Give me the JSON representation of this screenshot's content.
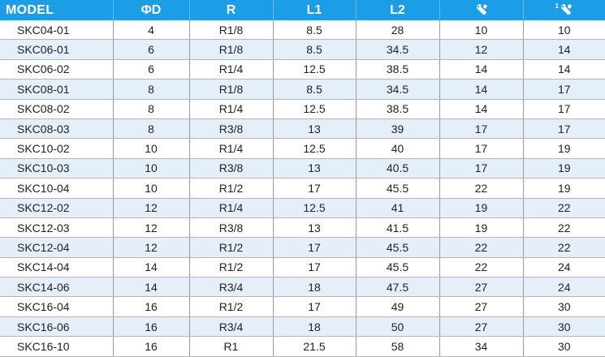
{
  "table": {
    "headers": {
      "model": "MODEL",
      "d": "ΦD",
      "r": "R",
      "l1": "L1",
      "l2": "L2",
      "wrench2_superscript": "1"
    },
    "header_icons": [
      "wrench-icon",
      "wrench-icon"
    ],
    "rows": [
      [
        "SKC04-01",
        "4",
        "R1/8",
        "8.5",
        "28",
        "10",
        "10"
      ],
      [
        "SKC06-01",
        "6",
        "R1/8",
        "8.5",
        "34.5",
        "12",
        "14"
      ],
      [
        "SKC06-02",
        "6",
        "R1/4",
        "12.5",
        "38.5",
        "14",
        "14"
      ],
      [
        "SKC08-01",
        "8",
        "R1/8",
        "8.5",
        "34.5",
        "14",
        "17"
      ],
      [
        "SKC08-02",
        "8",
        "R1/4",
        "12.5",
        "38.5",
        "14",
        "17"
      ],
      [
        "SKC08-03",
        "8",
        "R3/8",
        "13",
        "39",
        "17",
        "17"
      ],
      [
        "SKC10-02",
        "10",
        "R1/4",
        "12.5",
        "40",
        "17",
        "19"
      ],
      [
        "SKC10-03",
        "10",
        "R3/8",
        "13",
        "40.5",
        "17",
        "19"
      ],
      [
        "SKC10-04",
        "10",
        "R1/2",
        "17",
        "45.5",
        "22",
        "19"
      ],
      [
        "SKC12-02",
        "12",
        "R1/4",
        "12.5",
        "41",
        "19",
        "22"
      ],
      [
        "SKC12-03",
        "12",
        "R3/8",
        "13",
        "41.5",
        "19",
        "22"
      ],
      [
        "SKC12-04",
        "12",
        "R1/2",
        "17",
        "45.5",
        "22",
        "22"
      ],
      [
        "SKC14-04",
        "14",
        "R1/2",
        "17",
        "45.5",
        "22",
        "24"
      ],
      [
        "SKC14-06",
        "14",
        "R3/4",
        "18",
        "47.5",
        "27",
        "24"
      ],
      [
        "SKC16-04",
        "16",
        "R1/2",
        "17",
        "49",
        "27",
        "30"
      ],
      [
        "SKC16-06",
        "16",
        "R3/4",
        "18",
        "50",
        "27",
        "30"
      ],
      [
        "SKC16-10",
        "16",
        "R1",
        "21.5",
        "58",
        "34",
        "30"
      ]
    ]
  },
  "colors": {
    "header_bg": "#1c9ee6",
    "header_text": "#ffffff",
    "stripe_bg": "#e4effa",
    "row_bg": "#ffffff"
  }
}
